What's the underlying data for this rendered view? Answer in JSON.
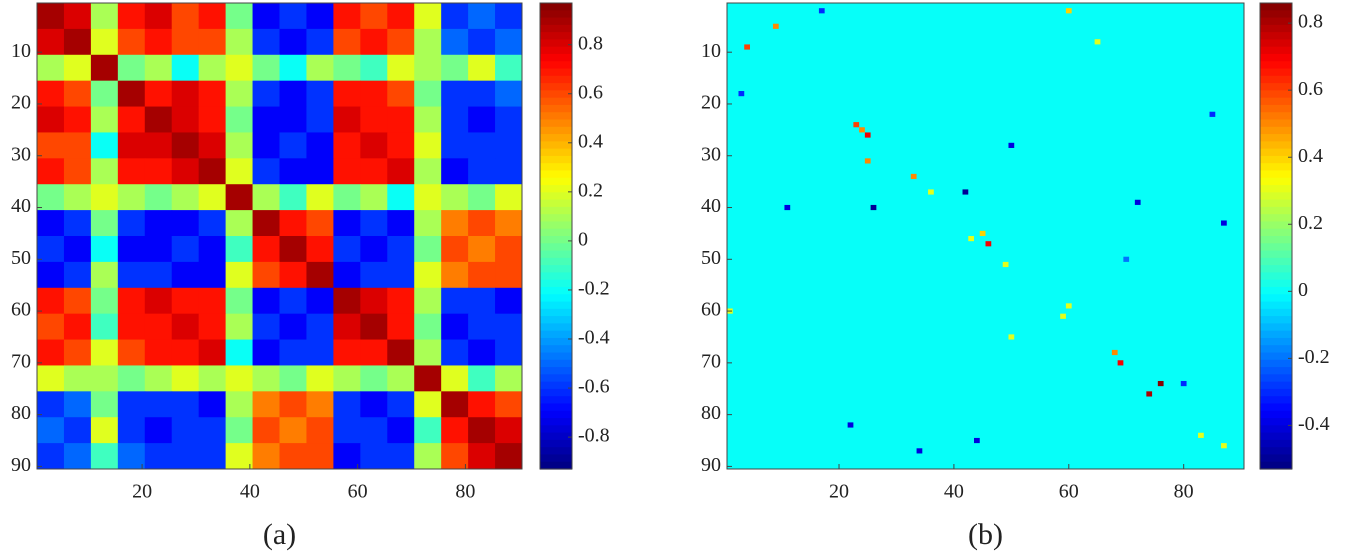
{
  "chart_data": [
    {
      "type": "heatmap",
      "label": "(a)",
      "colormap": "jet",
      "xlim": [
        0.5,
        90.5
      ],
      "ylim": [
        90.5,
        0.5
      ],
      "xticks": [
        20,
        40,
        60,
        80
      ],
      "yticks": [
        10,
        20,
        30,
        40,
        50,
        60,
        70,
        80,
        90
      ],
      "clim": [
        -0.93,
        0.97
      ],
      "cticks": [
        -0.8,
        -0.6,
        -0.4,
        -0.2,
        0,
        0.2,
        0.4,
        0.6,
        0.8
      ],
      "values": [
        [
          0.9,
          0.8,
          0.1,
          0.7,
          0.8,
          0.6,
          0.7,
          0.0,
          -0.7,
          -0.6,
          -0.7,
          0.7,
          0.6,
          0.7,
          0.2,
          -0.6,
          -0.5,
          -0.6
        ],
        [
          0.8,
          0.9,
          0.2,
          0.6,
          0.7,
          0.6,
          0.6,
          0.1,
          -0.6,
          -0.7,
          -0.6,
          0.6,
          0.7,
          0.6,
          0.1,
          -0.5,
          -0.6,
          -0.5
        ],
        [
          0.1,
          0.2,
          0.9,
          0.0,
          0.1,
          -0.2,
          0.1,
          0.2,
          0.0,
          -0.2,
          0.1,
          0.0,
          -0.1,
          0.2,
          0.1,
          0.0,
          0.2,
          -0.1
        ],
        [
          0.7,
          0.6,
          0.0,
          0.9,
          0.7,
          0.8,
          0.7,
          0.1,
          -0.6,
          -0.7,
          -0.6,
          0.7,
          0.7,
          0.6,
          0.0,
          -0.6,
          -0.6,
          -0.5
        ],
        [
          0.8,
          0.7,
          0.1,
          0.7,
          0.9,
          0.8,
          0.7,
          0.0,
          -0.7,
          -0.7,
          -0.6,
          0.8,
          0.7,
          0.7,
          0.1,
          -0.6,
          -0.7,
          -0.6
        ],
        [
          0.6,
          0.6,
          -0.2,
          0.8,
          0.8,
          0.9,
          0.8,
          0.1,
          -0.7,
          -0.6,
          -0.7,
          0.7,
          0.8,
          0.7,
          0.2,
          -0.6,
          -0.6,
          -0.6
        ],
        [
          0.7,
          0.6,
          0.1,
          0.7,
          0.7,
          0.8,
          0.9,
          0.2,
          -0.6,
          -0.7,
          -0.7,
          0.7,
          0.7,
          0.8,
          0.1,
          -0.7,
          -0.6,
          -0.6
        ],
        [
          0.0,
          0.1,
          0.2,
          0.1,
          0.0,
          0.1,
          0.2,
          0.9,
          0.1,
          -0.1,
          0.2,
          0.0,
          0.1,
          -0.2,
          0.2,
          0.1,
          0.0,
          0.2
        ],
        [
          -0.7,
          -0.6,
          0.0,
          -0.6,
          -0.7,
          -0.7,
          -0.6,
          0.1,
          0.9,
          0.7,
          0.6,
          -0.7,
          -0.6,
          -0.7,
          0.1,
          0.5,
          0.6,
          0.5
        ],
        [
          -0.6,
          -0.7,
          -0.2,
          -0.7,
          -0.7,
          -0.6,
          -0.7,
          -0.1,
          0.7,
          0.9,
          0.7,
          -0.6,
          -0.7,
          -0.6,
          0.0,
          0.6,
          0.5,
          0.6
        ],
        [
          -0.7,
          -0.6,
          0.1,
          -0.6,
          -0.6,
          -0.7,
          -0.7,
          0.2,
          0.6,
          0.7,
          0.9,
          -0.7,
          -0.6,
          -0.6,
          0.2,
          0.5,
          0.6,
          0.6
        ],
        [
          0.7,
          0.6,
          0.0,
          0.7,
          0.8,
          0.7,
          0.7,
          0.0,
          -0.7,
          -0.6,
          -0.7,
          0.9,
          0.8,
          0.7,
          0.1,
          -0.6,
          -0.6,
          -0.7
        ],
        [
          0.6,
          0.7,
          -0.1,
          0.7,
          0.7,
          0.8,
          0.7,
          0.1,
          -0.6,
          -0.7,
          -0.6,
          0.8,
          0.9,
          0.7,
          0.0,
          -0.7,
          -0.6,
          -0.6
        ],
        [
          0.7,
          0.6,
          0.2,
          0.6,
          0.7,
          0.7,
          0.8,
          -0.2,
          -0.7,
          -0.6,
          -0.6,
          0.7,
          0.7,
          0.9,
          0.1,
          -0.6,
          -0.7,
          -0.6
        ],
        [
          0.2,
          0.1,
          0.1,
          0.0,
          0.1,
          0.2,
          0.1,
          0.2,
          0.1,
          0.0,
          0.2,
          0.1,
          0.0,
          0.1,
          0.9,
          0.2,
          -0.1,
          0.1
        ],
        [
          -0.6,
          -0.5,
          0.0,
          -0.6,
          -0.6,
          -0.6,
          -0.7,
          0.1,
          0.5,
          0.6,
          0.5,
          -0.6,
          -0.7,
          -0.6,
          0.2,
          0.9,
          0.7,
          0.6
        ],
        [
          -0.5,
          -0.6,
          0.2,
          -0.6,
          -0.7,
          -0.6,
          -0.6,
          0.0,
          0.6,
          0.5,
          0.6,
          -0.6,
          -0.6,
          -0.7,
          -0.1,
          0.7,
          0.9,
          0.8
        ],
        [
          -0.6,
          -0.5,
          -0.1,
          -0.5,
          -0.6,
          -0.6,
          -0.6,
          0.2,
          0.5,
          0.6,
          0.6,
          -0.7,
          -0.6,
          -0.6,
          0.1,
          0.6,
          0.8,
          0.9
        ]
      ]
    },
    {
      "type": "sparse_heatmap",
      "label": "(b)",
      "colormap": "jet",
      "xlim": [
        0.5,
        90.5
      ],
      "ylim": [
        90.5,
        0.5
      ],
      "xticks": [
        20,
        40,
        60,
        80
      ],
      "yticks": [
        10,
        20,
        30,
        40,
        50,
        60,
        70,
        80,
        90
      ],
      "clim": [
        -0.53,
        0.86
      ],
      "cticks": [
        -0.4,
        -0.2,
        0,
        0.2,
        0.4,
        0.6,
        0.8
      ],
      "base_value": 0,
      "cells": [
        [
          9,
          4,
          0.6
        ],
        [
          5,
          9,
          0.5
        ],
        [
          24,
          23,
          0.6
        ],
        [
          26,
          25,
          0.7
        ],
        [
          25,
          24,
          0.5
        ],
        [
          31,
          25,
          0.5
        ],
        [
          34,
          33,
          0.5
        ],
        [
          37,
          36,
          0.3
        ],
        [
          46,
          43,
          0.3
        ],
        [
          47,
          46,
          0.7
        ],
        [
          45,
          45,
          0.4
        ],
        [
          51,
          49,
          0.3
        ],
        [
          61,
          59,
          0.3
        ],
        [
          59,
          60,
          0.3
        ],
        [
          68,
          68,
          0.5
        ],
        [
          70,
          69,
          0.7
        ],
        [
          74,
          76,
          0.85
        ],
        [
          76,
          74,
          0.8
        ],
        [
          84,
          83,
          0.3
        ],
        [
          86,
          87,
          0.3
        ],
        [
          60,
          1,
          0.3
        ],
        [
          22,
          85,
          -0.3
        ],
        [
          40,
          11,
          -0.4
        ],
        [
          40,
          26,
          -0.5
        ],
        [
          37,
          42,
          -0.5
        ],
        [
          39,
          72,
          -0.4
        ],
        [
          82,
          22,
          -0.4
        ],
        [
          85,
          44,
          -0.4
        ],
        [
          87,
          34,
          -0.4
        ],
        [
          50,
          70,
          -0.2
        ],
        [
          74,
          80,
          -0.3
        ],
        [
          18,
          3,
          -0.3
        ],
        [
          2,
          17,
          -0.3
        ],
        [
          28,
          50,
          -0.4
        ],
        [
          43,
          87,
          -0.4
        ],
        [
          65,
          50,
          0.3
        ],
        [
          2,
          60,
          0.4
        ],
        [
          8,
          65,
          0.3
        ]
      ]
    }
  ]
}
